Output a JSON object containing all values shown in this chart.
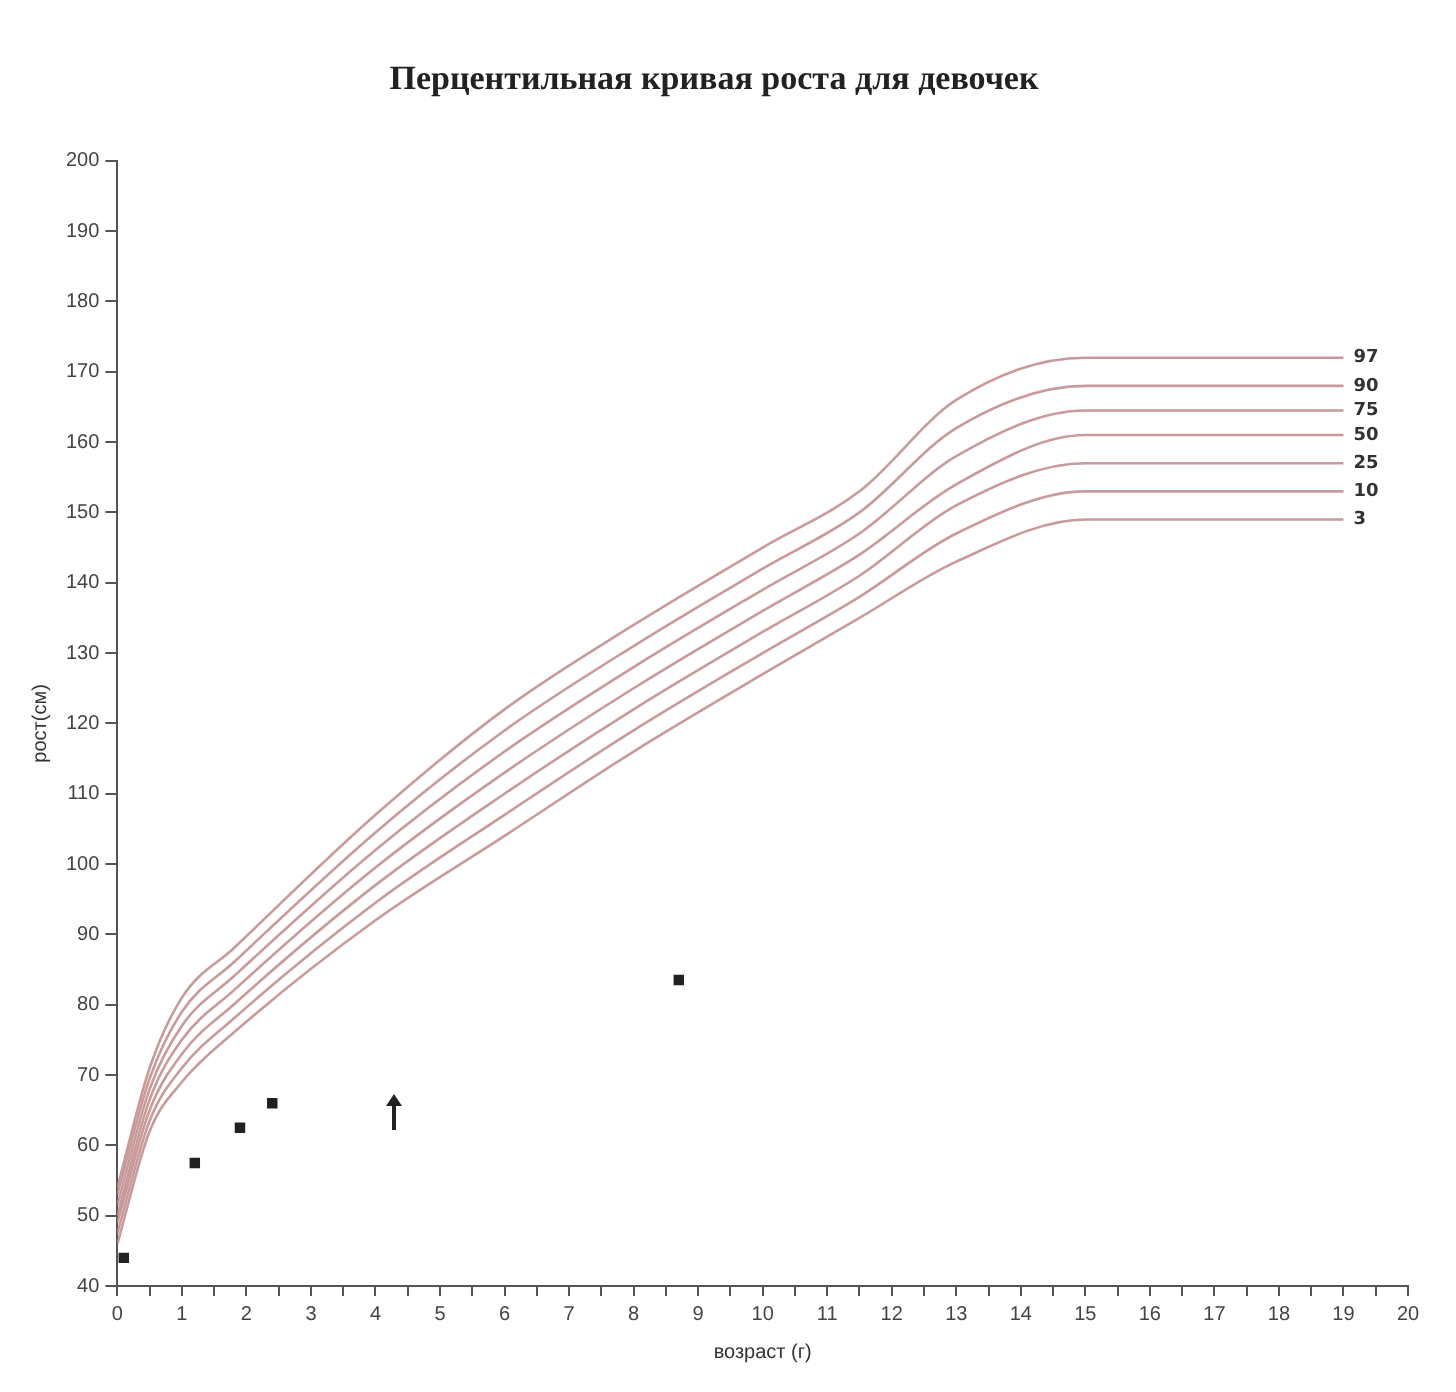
{
  "chart_data": {
    "type": "line",
    "title": "Перцентильная кривая роста для девочек",
    "xlabel": "возраст (г)",
    "ylabel": "рост(см)",
    "x": [
      0,
      0.5,
      1,
      1.8,
      4,
      6,
      8,
      10,
      11.5,
      13,
      15,
      19
    ],
    "series": [
      {
        "name": "97",
        "color": "#c99a9a",
        "values": [
          54,
          71,
          81,
          88,
          107,
          122,
          134,
          145,
          153,
          166,
          172,
          172
        ]
      },
      {
        "name": "90",
        "color": "#c99a9a",
        "values": [
          53,
          69.5,
          79,
          86,
          104.5,
          119,
          131,
          142,
          150,
          162,
          168,
          168
        ]
      },
      {
        "name": "75",
        "color": "#c99a9a",
        "values": [
          51.5,
          68,
          77,
          84,
          102,
          116,
          128,
          139,
          147,
          158,
          164.5,
          164.5
        ]
      },
      {
        "name": "50",
        "color": "#c99a9a",
        "values": [
          50,
          66.5,
          75,
          82,
          99.5,
          113,
          125,
          136,
          144,
          154,
          161,
          161
        ]
      },
      {
        "name": "25",
        "color": "#c99a9a",
        "values": [
          49,
          65,
          73,
          80,
          97,
          110,
          122,
          133,
          141,
          151,
          157,
          157
        ]
      },
      {
        "name": "10",
        "color": "#c99a9a",
        "values": [
          47.5,
          63.5,
          71,
          78,
          94.5,
          107,
          119,
          130,
          138,
          147,
          153,
          153
        ]
      },
      {
        "name": "3",
        "color": "#c99a9a",
        "values": [
          46,
          62,
          69,
          76,
          92,
          104,
          116,
          127,
          135,
          143,
          149,
          149
        ]
      },
      {
        "type": "scatter",
        "color": "#222222",
        "marker": "square",
        "x": [
          0.1,
          1.2,
          1.9,
          2.4,
          8.7
        ],
        "values": [
          44,
          57.5,
          62.5,
          66,
          83.5
        ]
      }
    ],
    "xlim": [
      0,
      20
    ],
    "ylim": [
      40,
      200
    ],
    "xticks": [
      0,
      {
        "value": 0.5,
        "label": null
      },
      1,
      {
        "value": 1.5,
        "label": null
      },
      2,
      {
        "value": 2.5,
        "label": null
      },
      3,
      {
        "value": 3.5,
        "label": null
      },
      4,
      {
        "value": 4.5,
        "label": null
      },
      5,
      {
        "value": 5.5,
        "label": null
      },
      6,
      {
        "value": 6.5,
        "label": null
      },
      7,
      {
        "value": 7.5,
        "label": null
      },
      8,
      {
        "value": 8.5,
        "label": null
      },
      9,
      {
        "value": 9.5,
        "label": null
      },
      10,
      {
        "value": 10.5,
        "label": null
      },
      11,
      {
        "value": 11.5,
        "label": null
      },
      12,
      {
        "value": 12.5,
        "label": null
      },
      13,
      {
        "value": 13.5,
        "label": null
      },
      14,
      {
        "value": 14.5,
        "label": null
      },
      15,
      {
        "value": 15.5,
        "label": null
      },
      16,
      {
        "value": 16.5,
        "label": null
      },
      17,
      {
        "value": 17.5,
        "label": null
      },
      18,
      {
        "value": 18.5,
        "label": null
      },
      19,
      {
        "value": 19.5,
        "label": null
      },
      20
    ],
    "yticks": [
      40,
      50,
      60,
      70,
      80,
      90,
      100,
      110,
      120,
      130,
      140,
      150,
      160,
      170,
      180,
      190,
      200
    ],
    "grid": false,
    "legend": false,
    "marker": "none",
    "line_style": "solid"
  }
}
